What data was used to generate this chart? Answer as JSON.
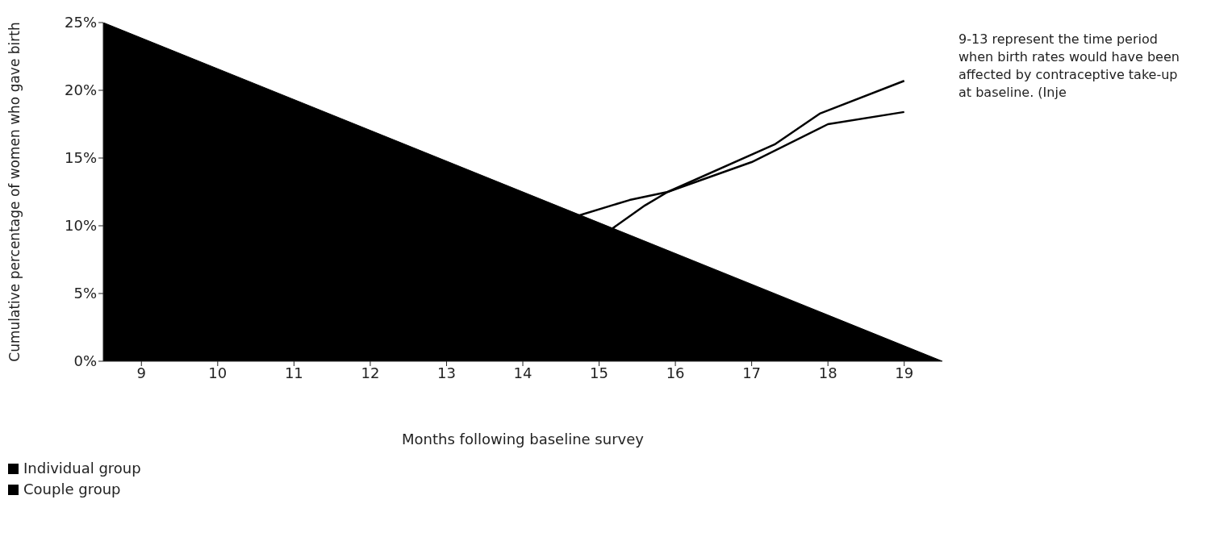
{
  "chart_data": {
    "type": "line",
    "xlabel": "Months following baseline survey",
    "ylabel": "Cumulative percentage of women who gave birth",
    "annotations": [
      "9-13 represent the time period when birth rates would have been affected by contraceptive take-up at baseline. (Inje"
    ],
    "xlim": [
      8.5,
      19.5
    ],
    "xticks": [
      9,
      10,
      11,
      12,
      13,
      14,
      15,
      16,
      17,
      18,
      19
    ],
    "ylim": [
      0,
      25
    ],
    "yticks": [
      {
        "value": 0,
        "label": "0%"
      },
      {
        "value": 5,
        "label": "5%"
      },
      {
        "value": 10,
        "label": "10%"
      },
      {
        "value": 15,
        "label": "15%"
      },
      {
        "value": 20,
        "label": "20%"
      },
      {
        "value": 25,
        "label": "25%"
      }
    ],
    "legend": "bottom left",
    "marker": "none",
    "line_style": "solid",
    "series": [
      {
        "type": "area",
        "color": "#000000",
        "x": [
          8.5,
          19.5
        ],
        "values": [
          25,
          0
        ]
      },
      {
        "name": "Individual group",
        "color": "#000000",
        "x": [
          15.15,
          15.6,
          15.9,
          17.3,
          17.9,
          19
        ],
        "values": [
          9.7,
          11.5,
          12.5,
          16,
          18.3,
          20.7
        ]
      },
      {
        "name": "Couple group",
        "color": "#000000",
        "x": [
          14.7,
          15.4,
          15.9,
          17,
          18,
          19
        ],
        "values": [
          10.7,
          11.9,
          12.5,
          14.7,
          17.5,
          18.4
        ]
      }
    ]
  }
}
